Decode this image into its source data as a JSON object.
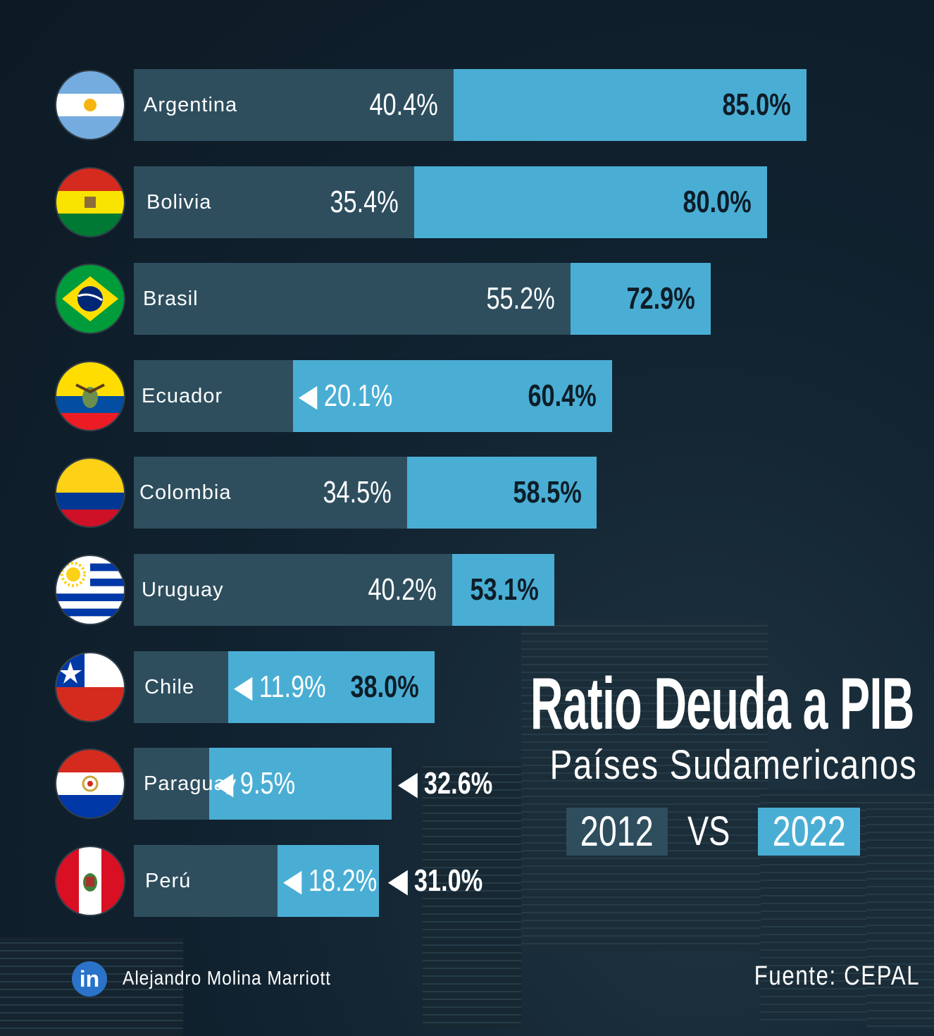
{
  "chart_data": {
    "type": "bar",
    "title": "Ratio Deuda a PIB",
    "subtitle": "Países Sudamericanos",
    "categories": [
      "Argentina",
      "Bolivia",
      "Brasil",
      "Ecuador",
      "Colombia",
      "Uruguay",
      "Chile",
      "Paraguay",
      "Perú"
    ],
    "series": [
      {
        "name": "2012",
        "values": [
          40.4,
          35.4,
          55.2,
          20.1,
          34.5,
          40.2,
          11.9,
          9.5,
          18.2
        ],
        "labels": [
          "40.4%",
          "35.4%",
          "55.2%",
          "◀ 20.1%",
          "34.5%",
          "40.2%",
          "◀ 11.9%",
          "◀ 9.5%",
          "◀ 18.2%"
        ],
        "color": "#4aaed4"
      },
      {
        "name": "2022",
        "values": [
          85.0,
          80.0,
          72.9,
          60.4,
          58.5,
          53.1,
          38.0,
          32.6,
          31.0
        ],
        "labels": [
          "85.0%",
          "80.0%",
          "72.9%",
          "60.4%",
          "58.5%",
          "53.1%",
          "38.0%",
          "◀ 32.6%",
          "◀ 31.0%"
        ],
        "color": "#2e4e5e"
      }
    ],
    "legend": {
      "year_a": "2012",
      "separator": "VS",
      "year_b": "2022"
    }
  },
  "source": "Fuente: CEPAL",
  "author": "Alejandro Molina Marriott",
  "linkedin_icon": "in",
  "colors": {
    "background": "#0f1f2b",
    "bar_2012": "#4aaed4",
    "bar_2022": "#2e4e5e"
  }
}
